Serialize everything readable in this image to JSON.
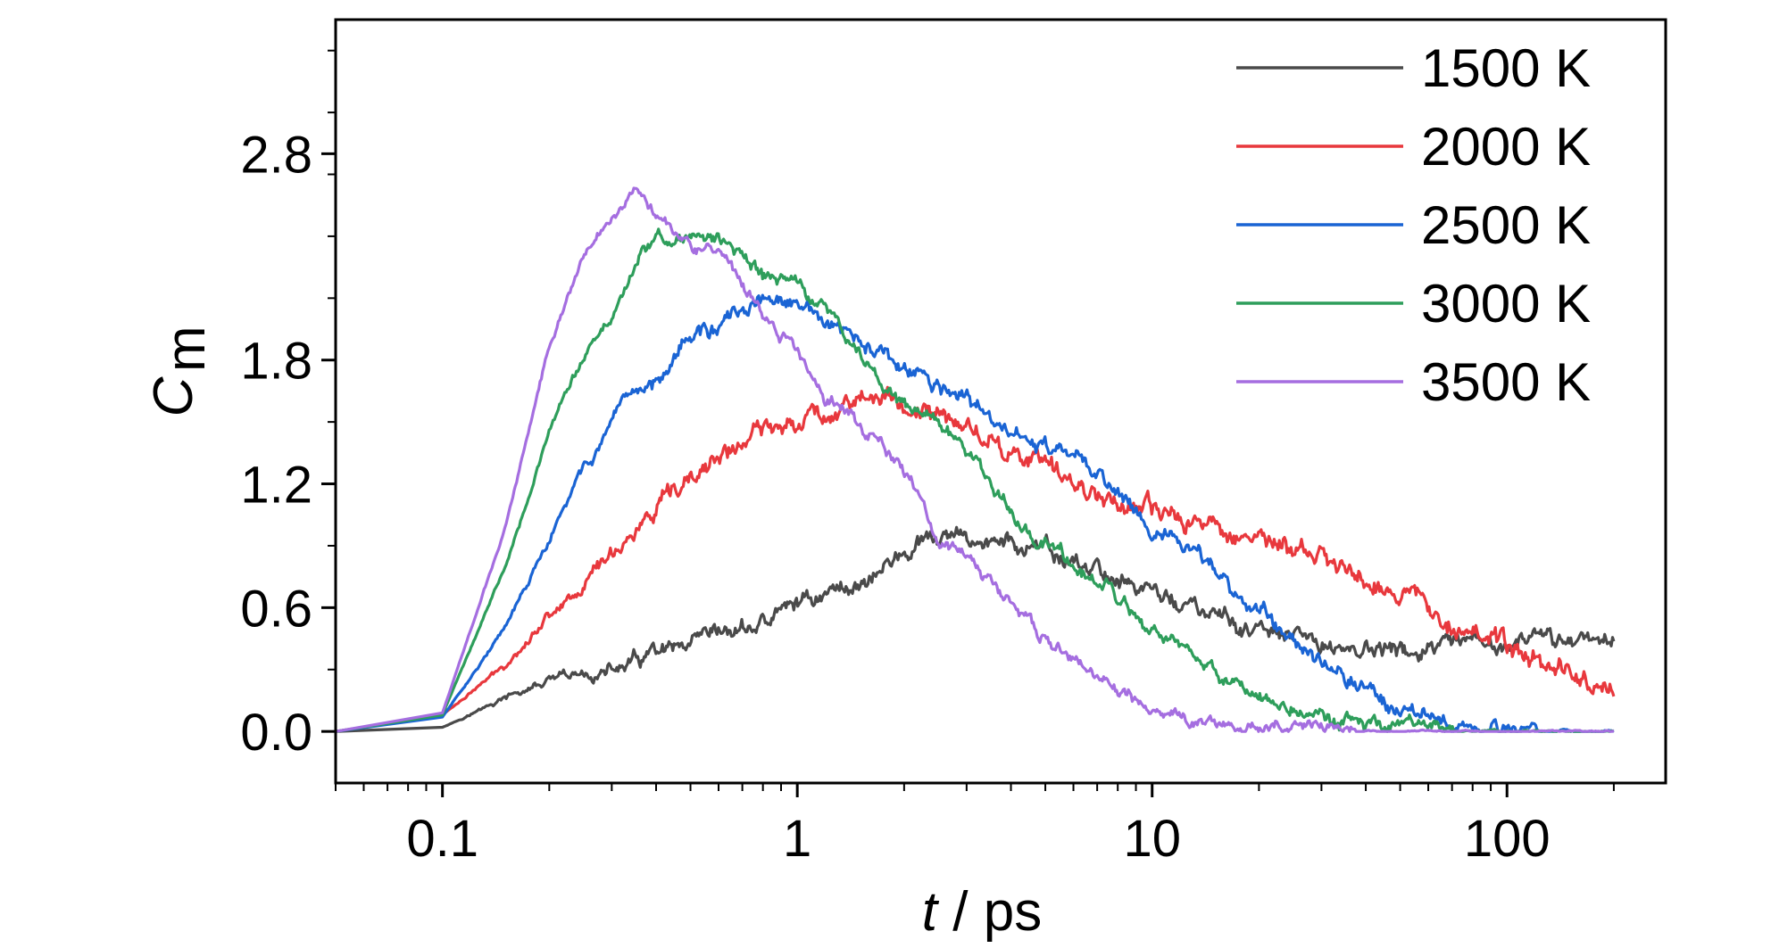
{
  "chart_data": {
    "type": "line",
    "title": "",
    "xlabel": {
      "italic": "t",
      "rest": " / ps"
    },
    "ylabel": {
      "main": "C",
      "sub": "m"
    },
    "x_scale": "log",
    "xlim": [
      0.05,
      280
    ],
    "ylim": [
      -0.25,
      3.45
    ],
    "x_ticks": [
      {
        "value": 0.1,
        "label": "0.1"
      },
      {
        "value": 1,
        "label": "1"
      },
      {
        "value": 10,
        "label": "10"
      },
      {
        "value": 100,
        "label": "100"
      }
    ],
    "y_ticks": [
      {
        "value": 0.0,
        "label": "0.0"
      },
      {
        "value": 0.6,
        "label": "0.6"
      },
      {
        "value": 1.2,
        "label": "1.2"
      },
      {
        "value": 1.8,
        "label": "1.8"
      },
      {
        "value": 2.8,
        "label": "2.8"
      }
    ],
    "grid": false,
    "legend_position": "top-right",
    "series": [
      {
        "name": "1500 K",
        "color": "#4a4a4a",
        "noise": 0.045,
        "x": [
          0.05,
          0.1,
          0.15,
          0.2,
          0.3,
          0.4,
          0.5,
          0.6,
          0.8,
          1.0,
          1.5,
          2.0,
          2.5,
          3.0,
          4.0,
          6.0,
          10,
          15,
          20,
          30,
          50,
          100,
          200
        ],
        "y": [
          0.0,
          0.02,
          0.16,
          0.24,
          0.29,
          0.37,
          0.38,
          0.46,
          0.52,
          0.63,
          0.72,
          0.86,
          0.93,
          0.93,
          0.91,
          0.82,
          0.68,
          0.55,
          0.48,
          0.42,
          0.38,
          0.42,
          0.47
        ]
      },
      {
        "name": "2000 K",
        "color": "#e8383d",
        "noise": 0.05,
        "x": [
          0.05,
          0.1,
          0.15,
          0.2,
          0.25,
          0.3,
          0.4,
          0.5,
          0.6,
          0.8,
          1.0,
          1.2,
          1.5,
          2.0,
          3.0,
          5.0,
          10,
          15,
          20,
          30,
          50,
          80,
          100,
          150,
          200
        ],
        "y": [
          0.0,
          0.08,
          0.32,
          0.57,
          0.71,
          0.88,
          1.05,
          1.2,
          1.33,
          1.45,
          1.53,
          1.54,
          1.63,
          1.58,
          1.48,
          1.27,
          1.05,
          1.0,
          0.94,
          0.83,
          0.68,
          0.5,
          0.4,
          0.3,
          0.18
        ]
      },
      {
        "name": "2500 K",
        "color": "#1a64d4",
        "noise": 0.04,
        "x": [
          0.05,
          0.1,
          0.15,
          0.2,
          0.25,
          0.3,
          0.35,
          0.4,
          0.45,
          0.5,
          0.6,
          0.7,
          0.8,
          0.9,
          1.0,
          1.2,
          1.5,
          2.0,
          3.0,
          4.0,
          5.0,
          7.0,
          10,
          15,
          20,
          30,
          40,
          50,
          70,
          100,
          150,
          200
        ],
        "y": [
          0.0,
          0.07,
          0.5,
          0.92,
          1.28,
          1.46,
          1.64,
          1.7,
          1.85,
          1.92,
          1.96,
          2.02,
          2.1,
          2.06,
          2.06,
          1.98,
          1.88,
          1.75,
          1.6,
          1.44,
          1.38,
          1.26,
          1.0,
          0.78,
          0.58,
          0.36,
          0.2,
          0.12,
          0.04,
          0.01,
          0.0,
          0.0
        ]
      },
      {
        "name": "3000 K",
        "color": "#2e9e5b",
        "noise": 0.035,
        "x": [
          0.05,
          0.1,
          0.15,
          0.2,
          0.25,
          0.3,
          0.35,
          0.4,
          0.5,
          0.6,
          0.7,
          0.8,
          1.0,
          1.2,
          1.5,
          2.0,
          2.5,
          3.0,
          4.0,
          5.0,
          7.0,
          10,
          15,
          20,
          30,
          50,
          100,
          200
        ],
        "y": [
          0.0,
          0.08,
          0.8,
          1.45,
          1.82,
          2.0,
          2.28,
          2.38,
          2.4,
          2.38,
          2.32,
          2.2,
          2.18,
          2.05,
          1.82,
          1.58,
          1.5,
          1.36,
          1.05,
          0.92,
          0.72,
          0.48,
          0.28,
          0.18,
          0.06,
          0.01,
          0.0,
          0.0
        ]
      },
      {
        "name": "3500 K",
        "color": "#a56ee0",
        "noise": 0.03,
        "x": [
          0.05,
          0.1,
          0.15,
          0.2,
          0.25,
          0.3,
          0.35,
          0.4,
          0.5,
          0.6,
          0.8,
          1.0,
          1.2,
          1.5,
          2.0,
          2.5,
          3.0,
          4.0,
          5.0,
          7.0,
          10,
          15,
          20,
          30,
          50,
          100,
          200
        ],
        "y": [
          0.0,
          0.09,
          0.98,
          1.88,
          2.3,
          2.5,
          2.64,
          2.52,
          2.38,
          2.3,
          2.02,
          1.84,
          1.62,
          1.5,
          1.28,
          0.92,
          0.85,
          0.62,
          0.45,
          0.25,
          0.1,
          0.04,
          0.02,
          0.01,
          0.0,
          0.0,
          0.0
        ]
      }
    ]
  }
}
